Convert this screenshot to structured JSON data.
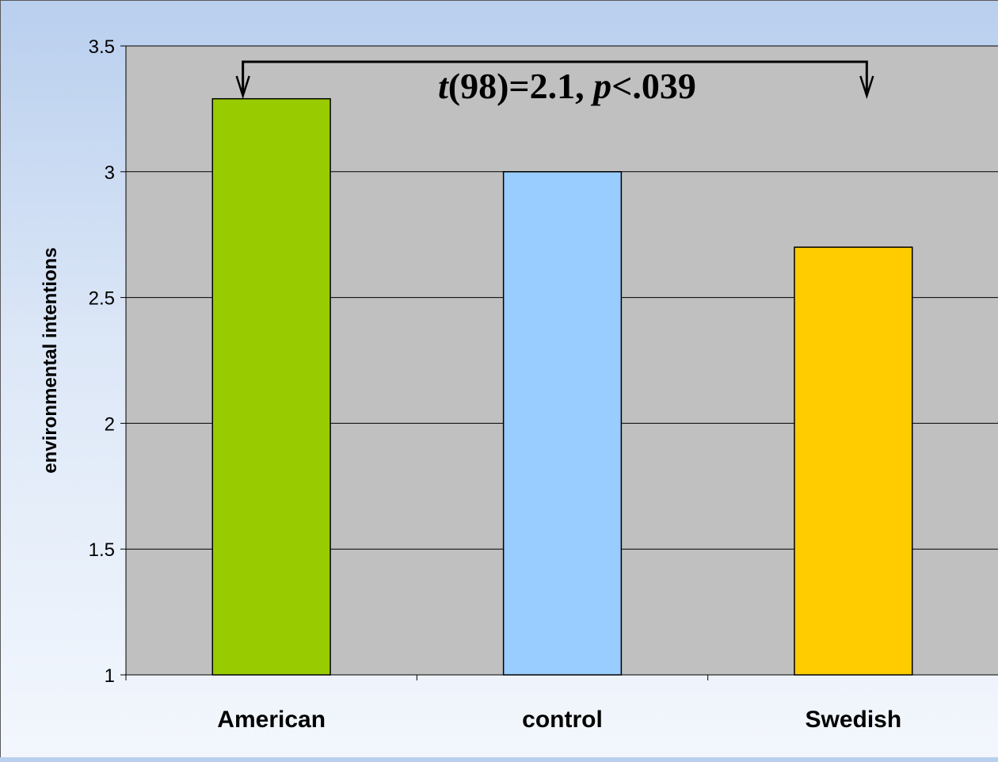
{
  "chart_data": {
    "type": "bar",
    "categories": [
      "American",
      "control",
      "Swedish"
    ],
    "values": [
      3.29,
      3.0,
      2.7
    ],
    "ylabel": "environmental intentions",
    "xlabel": "",
    "ylim": [
      1,
      3.5
    ],
    "yticks": [
      1,
      1.5,
      2,
      2.5,
      3,
      3.5
    ],
    "ytick_labels": [
      "1",
      "1.5",
      "2",
      "2.5",
      "3",
      "3.5"
    ],
    "grid": true,
    "legend": "none",
    "colors": [
      "#99cc00",
      "#99ccff",
      "#ffcc00"
    ],
    "plot_background": "#c0c0c0",
    "annotation": {
      "text_parts": [
        {
          "text": "t",
          "italic": true
        },
        {
          "text": "(98)=2.1, ",
          "italic": false
        },
        {
          "text": "p",
          "italic": true
        },
        {
          "text": "<.039",
          "italic": false
        }
      ],
      "from_category": "American",
      "to_category": "Swedish"
    }
  }
}
